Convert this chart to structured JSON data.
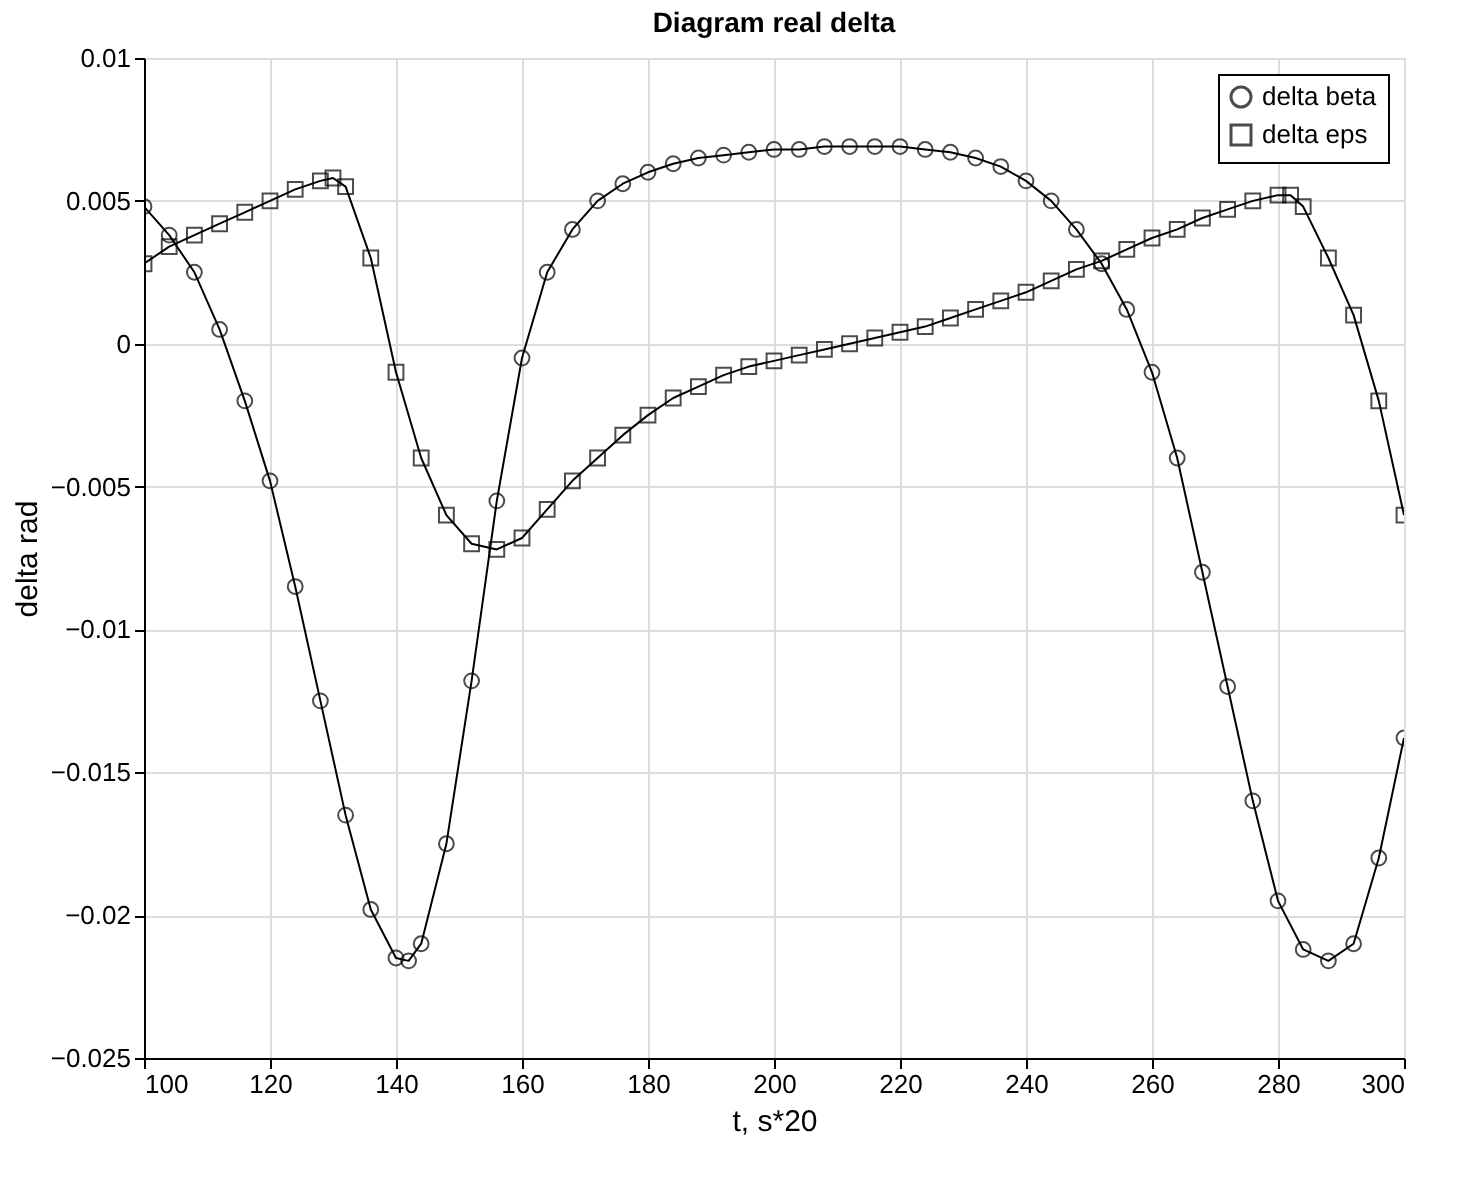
{
  "chart_data": {
    "type": "line",
    "title": "Diagram real delta",
    "xlabel": "t, s*20",
    "ylabel": "delta rad",
    "xlim": [
      100,
      300
    ],
    "xticks": [
      100,
      120,
      140,
      160,
      180,
      200,
      220,
      240,
      260,
      280,
      300
    ],
    "ylim": [
      -0.025,
      0.01
    ],
    "yticks": [
      -0.025,
      -0.02,
      -0.015,
      -0.01,
      -0.005,
      0,
      0.005,
      0.01
    ],
    "grid": true,
    "legend": "top right",
    "line_style": "solid",
    "series": [
      {
        "name": "delta beta",
        "color": "#000000",
        "marker": "circle",
        "x": [
          100,
          104,
          108,
          112,
          116,
          120,
          124,
          128,
          132,
          136,
          140,
          142,
          144,
          148,
          152,
          156,
          160,
          164,
          168,
          172,
          176,
          180,
          184,
          188,
          192,
          196,
          200,
          204,
          208,
          212,
          216,
          220,
          224,
          228,
          232,
          236,
          240,
          244,
          248,
          252,
          256,
          260,
          264,
          268,
          272,
          276,
          280,
          284,
          288,
          292,
          296,
          300
        ],
        "values": [
          0.0048,
          0.0038,
          0.0025,
          0.0005,
          -0.002,
          -0.0048,
          -0.0085,
          -0.0125,
          -0.0165,
          -0.0198,
          -0.0215,
          -0.0216,
          -0.021,
          -0.0175,
          -0.0118,
          -0.0055,
          -0.0005,
          0.0025,
          0.004,
          0.005,
          0.0056,
          0.006,
          0.0063,
          0.0065,
          0.0066,
          0.0067,
          0.0068,
          0.0068,
          0.0069,
          0.0069,
          0.0069,
          0.0069,
          0.0068,
          0.0067,
          0.0065,
          0.0062,
          0.0057,
          0.005,
          0.004,
          0.0028,
          0.0012,
          -0.001,
          -0.004,
          -0.008,
          -0.012,
          -0.016,
          -0.0195,
          -0.0212,
          -0.0216,
          -0.021,
          -0.018,
          -0.0138
        ]
      },
      {
        "name": "delta eps",
        "color": "#000000",
        "marker": "square",
        "x": [
          100,
          104,
          108,
          112,
          116,
          120,
          124,
          128,
          130,
          132,
          136,
          140,
          144,
          148,
          152,
          156,
          160,
          164,
          168,
          172,
          176,
          180,
          184,
          188,
          192,
          196,
          200,
          204,
          208,
          212,
          216,
          220,
          224,
          228,
          232,
          236,
          240,
          244,
          248,
          252,
          256,
          260,
          264,
          268,
          272,
          276,
          280,
          282,
          284,
          288,
          292,
          296,
          300
        ],
        "values": [
          0.0028,
          0.0034,
          0.0038,
          0.0042,
          0.0046,
          0.005,
          0.0054,
          0.0057,
          0.0058,
          0.0055,
          0.003,
          -0.001,
          -0.004,
          -0.006,
          -0.007,
          -0.0072,
          -0.0068,
          -0.0058,
          -0.0048,
          -0.004,
          -0.0032,
          -0.0025,
          -0.0019,
          -0.0015,
          -0.0011,
          -0.0008,
          -0.0006,
          -0.0004,
          -0.0002,
          0,
          0.0002,
          0.0004,
          0.0006,
          0.0009,
          0.0012,
          0.0015,
          0.0018,
          0.0022,
          0.0026,
          0.0029,
          0.0033,
          0.0037,
          0.004,
          0.0044,
          0.0047,
          0.005,
          0.0052,
          0.0052,
          0.0048,
          0.003,
          0.001,
          -0.002,
          -0.006
        ]
      }
    ]
  }
}
